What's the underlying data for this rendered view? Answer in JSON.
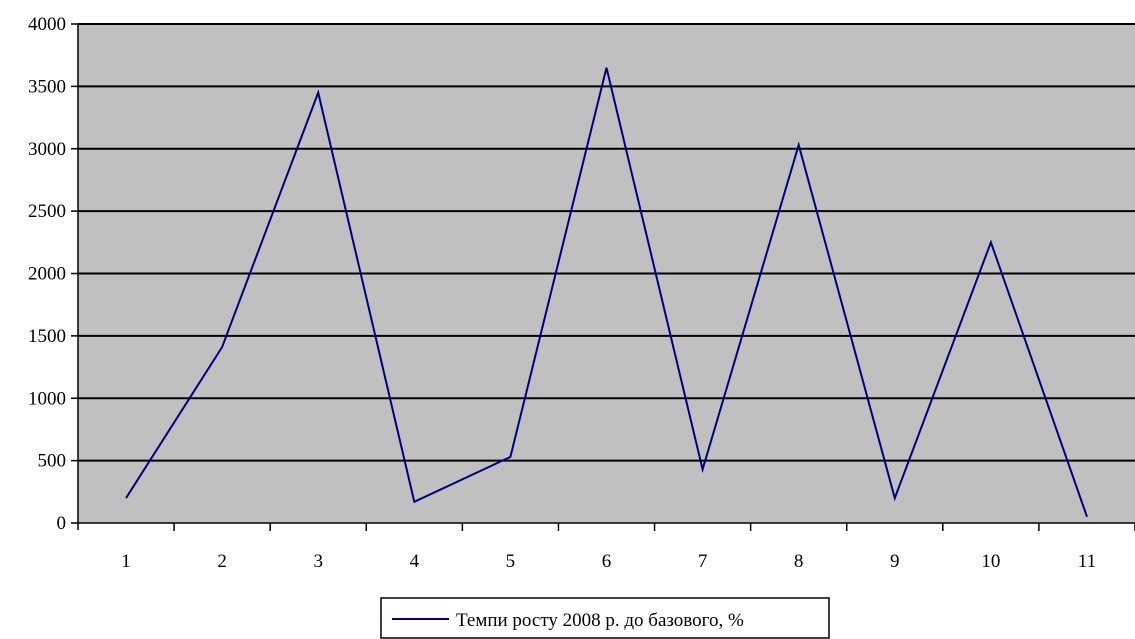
{
  "chart_data": {
    "type": "line",
    "title": "",
    "xlabel": "",
    "ylabel": "",
    "categories": [
      "1",
      "2",
      "3",
      "4",
      "5",
      "6",
      "7",
      "8",
      "9",
      "10",
      "11"
    ],
    "series": [
      {
        "name": "Темпи росту 2008 р. до базового, %",
        "values": [
          200,
          1410,
          3450,
          170,
          530,
          3650,
          430,
          3030,
          200,
          2250,
          50
        ],
        "color": "#000080"
      }
    ],
    "ylim": [
      0,
      4000
    ],
    "yticks": [
      "0",
      "500",
      "1000",
      "1500",
      "2000",
      "2500",
      "3000",
      "3500",
      "4000"
    ],
    "grid": true,
    "legend_position": "bottom",
    "plot_background": "#c0c0c0",
    "gridline_color": "#000000"
  }
}
